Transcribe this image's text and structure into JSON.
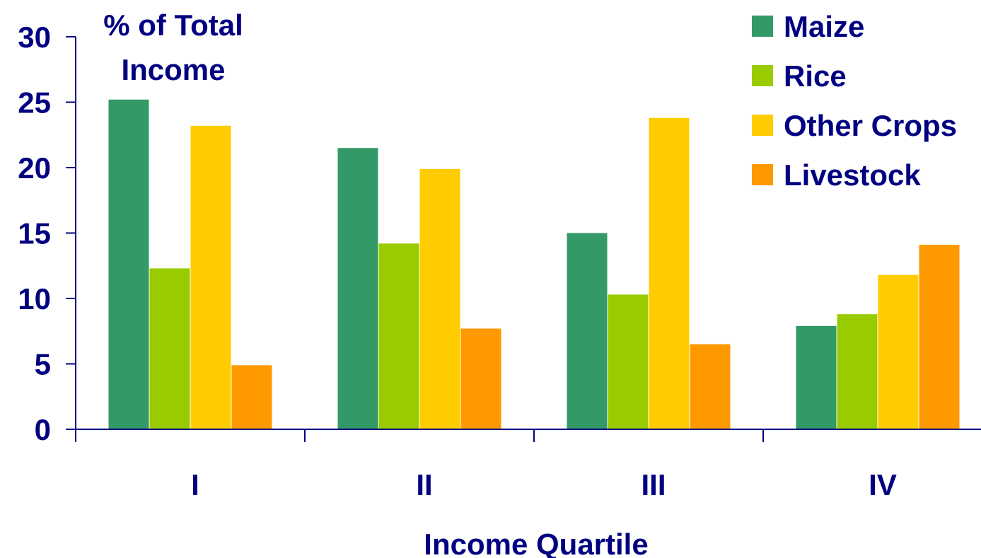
{
  "chart_data": {
    "type": "bar",
    "title_lines": [
      "% of Total",
      "Income"
    ],
    "xlabel": "Income Quartile",
    "ylabel": "",
    "categories": [
      "I",
      "II",
      "III",
      "IV"
    ],
    "yticks": [
      "0",
      "5",
      "10",
      "15",
      "20",
      "25",
      "30"
    ],
    "ylim": [
      0,
      30
    ],
    "grid": false,
    "legend_position": "top-right",
    "series": [
      {
        "name": "Maize",
        "color": "#339966",
        "values": [
          25.2,
          21.5,
          15.0,
          7.9
        ]
      },
      {
        "name": "Rice",
        "color": "#99CC00",
        "values": [
          12.3,
          14.2,
          10.3,
          8.8
        ]
      },
      {
        "name": "Other Crops",
        "color": "#FFCC00",
        "values": [
          23.2,
          19.9,
          23.8,
          11.8
        ]
      },
      {
        "name": "Livestock",
        "color": "#FF9900",
        "values": [
          4.9,
          7.7,
          6.5,
          14.1
        ]
      }
    ],
    "text_color": "#000080",
    "axis_color": "#000080"
  }
}
